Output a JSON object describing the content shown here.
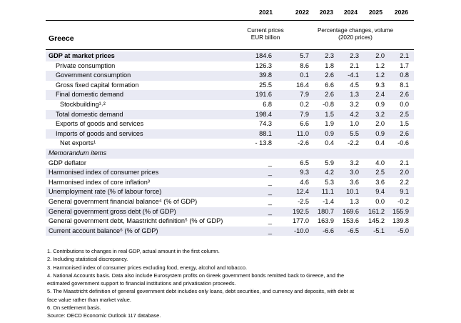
{
  "header": {
    "years": [
      "2021",
      "2022",
      "2023",
      "2024",
      "2025",
      "2026"
    ],
    "country": "Greece",
    "unit_2021_line1": "Current prices",
    "unit_2021_line2": "EUR billion",
    "unit_other_line1": "Percentage changes, volume",
    "unit_other_line2": "(2020 prices)"
  },
  "rows": [
    {
      "label": "GDP at market prices",
      "values": [
        "184.6",
        "5.7",
        "2.3",
        "2.3",
        "2.0",
        "2.1"
      ]
    },
    {
      "label": "Private consumption",
      "values": [
        "126.3",
        "8.6",
        "1.8",
        "2.1",
        "1.2",
        "1.7"
      ]
    },
    {
      "label": "Government consumption",
      "values": [
        "39.8",
        "0.1",
        "2.6",
        "-4.1",
        "1.2",
        "0.8"
      ]
    },
    {
      "label": "Gross fixed capital formation",
      "values": [
        "25.5",
        "16.4",
        "6.6",
        "4.5",
        "9.3",
        "8.1"
      ]
    },
    {
      "label": "Final domestic demand",
      "values": [
        "191.6",
        "7.9",
        "2.6",
        "1.3",
        "2.4",
        "2.6"
      ]
    },
    {
      "label": "Stockbuilding¹˒²",
      "values": [
        "6.8",
        "0.2",
        "-0.8",
        "3.2",
        "0.9",
        "0.0"
      ]
    },
    {
      "label": "Total domestic demand",
      "values": [
        "198.4",
        "7.9",
        "1.5",
        "4.2",
        "3.2",
        "2.5"
      ]
    },
    {
      "label": "Exports of goods and services",
      "values": [
        "74.3",
        "6.6",
        "1.9",
        "1.0",
        "2.0",
        "1.5"
      ]
    },
    {
      "label": "Imports of goods and services",
      "values": [
        "88.1",
        "11.0",
        "0.9",
        "5.5",
        "0.9",
        "2.6"
      ]
    },
    {
      "label": "Net exports¹",
      "values": [
        "- 13.8",
        "-2.6",
        "0.4",
        "-2.2",
        "0.4",
        "-0.6"
      ]
    },
    {
      "label": "Memorandum items",
      "values": [
        "",
        "",
        "",
        "",
        "",
        ""
      ]
    },
    {
      "label": "GDP deflator",
      "values": [
        "_",
        "6.5",
        "5.9",
        "3.2",
        "4.0",
        "2.1"
      ]
    },
    {
      "label": "Harmonised index of consumer prices",
      "values": [
        "_",
        "9.3",
        "4.2",
        "3.0",
        "2.5",
        "2.0"
      ]
    },
    {
      "label": "Harmonised index of core inflation³",
      "values": [
        "_",
        "4.6",
        "5.3",
        "3.6",
        "3.6",
        "2.2"
      ]
    },
    {
      "label": "Unemployment rate (% of labour force)",
      "values": [
        "_",
        "12.4",
        "11.1",
        "10.1",
        "9.4",
        "9.1"
      ]
    },
    {
      "label": "General government financial balance⁴ (% of GDP)",
      "values": [
        "_",
        "-2.5",
        "-1.4",
        "1.3",
        "0.0",
        "-0.2"
      ]
    },
    {
      "label": "General government gross debt (% of GDP)",
      "values": [
        "_",
        "192.5",
        "180.7",
        "169.6",
        "161.2",
        "155.9"
      ]
    },
    {
      "label": "General government debt, Maastricht definition⁵ (% of GDP)",
      "values": [
        "_",
        "177.0",
        "163.9",
        "153.6",
        "145.2",
        "139.8"
      ]
    },
    {
      "label": "Current account balance⁶ (% of GDP)",
      "values": [
        "_",
        "-10.0",
        "-6.6",
        "-6.5",
        "-5.1",
        "-5.0"
      ]
    }
  ],
  "notes": [
    "1. Contributions to changes in real GDP, actual amount in the first column.",
    "2. Including statistical discrepancy.",
    "3. Harmonised index of consumer prices excluding food, energy, alcohol and tobacco.",
    "4. National Accounts basis. Data also include Eurosystem profits on Greek government bonds remitted back to Greece, and the",
    "estimated government support to financial institutions and privatisation proceeds.",
    "5. The Maastricht definition of general government debt includes only loans, debt securities, and currency and deposits, with debt at",
    "face value rather than market value.",
    "6. On settlement basis.",
    "Source: OECD Economic Outlook 117 database."
  ]
}
